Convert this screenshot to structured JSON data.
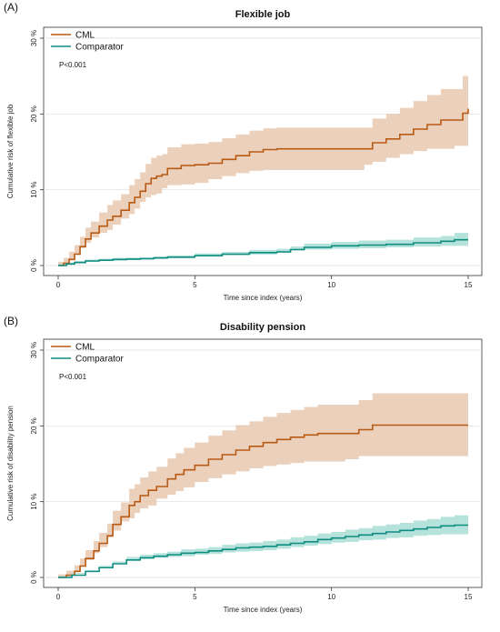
{
  "chart_data": [
    {
      "type": "line",
      "panel_label": "(A)",
      "title": "Flexible job",
      "xlabel": "Time since index (years)",
      "ylabel": "Cumulative risk of flexible job",
      "xlim": [
        0,
        15
      ],
      "ylim": [
        0,
        30
      ],
      "x_ticks": [
        0,
        5,
        10,
        15
      ],
      "y_ticks": [
        0,
        10,
        20,
        30
      ],
      "y_tick_labels": [
        "0 %",
        "10 %",
        "20 %",
        "30 %"
      ],
      "grid": "horizontal",
      "legend_position": "top-left",
      "annotation": "P<0.001",
      "series": [
        {
          "name": "CML",
          "color": "#b85a14",
          "band_color": "#e8c8b0",
          "x": [
            0,
            0.2,
            0.4,
            0.6,
            0.8,
            1.0,
            1.2,
            1.5,
            1.8,
            2.0,
            2.3,
            2.6,
            2.8,
            3.0,
            3.2,
            3.4,
            3.6,
            3.8,
            4.0,
            4.5,
            5.0,
            5.5,
            6.0,
            6.5,
            7.0,
            7.5,
            8.0,
            9.0,
            10.0,
            11.0,
            11.2,
            11.5,
            12.0,
            12.5,
            13.0,
            13.5,
            14.0,
            14.5,
            14.8,
            15.0
          ],
          "y": [
            0,
            0.3,
            0.8,
            1.5,
            2.5,
            3.5,
            4.3,
            5.2,
            6.0,
            6.5,
            7.3,
            8.3,
            9.0,
            9.8,
            10.8,
            11.5,
            11.8,
            12.0,
            12.8,
            13.2,
            13.3,
            13.5,
            14.0,
            14.5,
            15.0,
            15.3,
            15.4,
            15.4,
            15.4,
            15.4,
            15.4,
            16.2,
            16.7,
            17.3,
            18.0,
            18.6,
            19.2,
            19.2,
            20.1,
            20.7
          ],
          "ci_lower": [
            0,
            0.1,
            0.3,
            0.8,
            1.5,
            2.3,
            3.0,
            3.7,
            4.3,
            4.7,
            5.4,
            6.2,
            6.8,
            7.5,
            8.4,
            9.0,
            9.3,
            9.5,
            10.2,
            10.6,
            10.7,
            10.9,
            11.4,
            11.8,
            12.2,
            12.5,
            12.6,
            12.6,
            12.6,
            12.6,
            12.6,
            13.3,
            13.7,
            14.2,
            14.7,
            15.1,
            15.4,
            15.4,
            15.8,
            15.8
          ],
          "ci_upper": [
            0.5,
            1.0,
            1.8,
            2.7,
            3.8,
            5.0,
            5.8,
            7.0,
            8.0,
            8.6,
            9.4,
            10.6,
            11.4,
            12.3,
            13.4,
            14.2,
            14.5,
            14.7,
            15.6,
            16.0,
            16.1,
            16.3,
            16.8,
            17.3,
            17.8,
            18.1,
            18.2,
            18.2,
            18.2,
            18.2,
            18.2,
            19.4,
            20.0,
            20.8,
            21.7,
            22.5,
            23.3,
            23.3,
            25.0,
            25.8
          ]
        },
        {
          "name": "Comparator",
          "color": "#0e8c80",
          "band_color": "#a8ddd5",
          "x": [
            0,
            0.3,
            0.6,
            1.0,
            1.5,
            2.0,
            2.5,
            3.0,
            3.5,
            4.0,
            5.0,
            6.0,
            7.0,
            8.0,
            8.5,
            9.0,
            10.0,
            11.0,
            12.0,
            13.0,
            14.0,
            14.5,
            15.0
          ],
          "y": [
            0,
            0.2,
            0.4,
            0.6,
            0.7,
            0.8,
            0.85,
            0.9,
            1.0,
            1.1,
            1.3,
            1.5,
            1.7,
            1.8,
            2.1,
            2.4,
            2.6,
            2.7,
            2.8,
            3.0,
            3.2,
            3.4,
            3.4
          ],
          "ci_lower": [
            0,
            0.1,
            0.2,
            0.4,
            0.5,
            0.6,
            0.65,
            0.7,
            0.8,
            0.9,
            1.0,
            1.2,
            1.35,
            1.45,
            1.7,
            2.0,
            2.1,
            2.2,
            2.3,
            2.4,
            2.5,
            2.6,
            2.6
          ],
          "ci_upper": [
            0.2,
            0.4,
            0.6,
            0.8,
            0.9,
            1.0,
            1.05,
            1.1,
            1.2,
            1.35,
            1.6,
            1.8,
            2.05,
            2.2,
            2.5,
            2.9,
            3.1,
            3.3,
            3.4,
            3.7,
            3.9,
            4.3,
            4.3
          ]
        }
      ]
    },
    {
      "type": "line",
      "panel_label": "(B)",
      "title": "Disability pension",
      "xlabel": "Time since index (years)",
      "ylabel": "Cumulative risk of disability pension",
      "xlim": [
        0,
        15
      ],
      "ylim": [
        0,
        30
      ],
      "x_ticks": [
        0,
        5,
        10,
        15
      ],
      "y_ticks": [
        0,
        10,
        20,
        30
      ],
      "y_tick_labels": [
        "0 %",
        "10 %",
        "20 %",
        "30 %"
      ],
      "grid": "horizontal",
      "legend_position": "top-left",
      "annotation": "P<0.001",
      "series": [
        {
          "name": "CML",
          "color": "#b85a14",
          "band_color": "#e8c8b0",
          "x": [
            0,
            0.3,
            0.6,
            0.8,
            1.0,
            1.3,
            1.5,
            1.8,
            2.0,
            2.3,
            2.6,
            2.8,
            3.0,
            3.3,
            3.6,
            4.0,
            4.3,
            4.6,
            5.0,
            5.5,
            6.0,
            6.5,
            7.0,
            7.5,
            8.0,
            8.5,
            9.0,
            9.5,
            10.0,
            10.5,
            11.0,
            11.5,
            12.0,
            13.0,
            14.0,
            15.0
          ],
          "y": [
            0,
            0.3,
            0.8,
            1.5,
            2.5,
            3.5,
            4.5,
            5.5,
            7.0,
            8.0,
            9.5,
            10.0,
            10.8,
            11.5,
            12.0,
            13.0,
            13.6,
            14.2,
            14.8,
            15.6,
            16.2,
            16.8,
            17.3,
            17.8,
            18.2,
            18.5,
            18.8,
            19.0,
            19.0,
            19.0,
            19.5,
            20.1,
            20.1,
            20.1,
            20.1,
            20.1
          ],
          "ci_lower": [
            0,
            0.1,
            0.3,
            0.8,
            1.5,
            2.3,
            3.2,
            4.0,
            5.3,
            6.2,
            7.4,
            7.8,
            8.5,
            9.1,
            9.5,
            10.4,
            10.9,
            11.4,
            11.9,
            12.6,
            13.1,
            13.6,
            14.0,
            14.4,
            14.7,
            14.9,
            15.1,
            15.3,
            15.3,
            15.3,
            15.6,
            16.0,
            16.0,
            16.0,
            16.0,
            16.0
          ],
          "ci_upper": [
            0.4,
            0.9,
            1.6,
            2.5,
            3.6,
            4.8,
            5.9,
            7.1,
            8.8,
            9.9,
            11.7,
            12.3,
            13.2,
            14.0,
            14.6,
            15.7,
            16.4,
            17.1,
            17.8,
            18.7,
            19.4,
            20.1,
            20.6,
            21.2,
            21.7,
            22.1,
            22.5,
            22.8,
            22.8,
            22.8,
            23.4,
            24.3,
            24.3,
            24.3,
            24.3,
            24.3
          ]
        },
        {
          "name": "Comparator",
          "color": "#0e8c80",
          "band_color": "#a8ddd5",
          "x": [
            0,
            0.5,
            1.0,
            1.5,
            2.0,
            2.5,
            3.0,
            3.5,
            4.0,
            4.5,
            5.0,
            5.5,
            6.0,
            6.5,
            7.0,
            7.5,
            8.0,
            8.5,
            9.0,
            9.5,
            10.0,
            10.5,
            11.0,
            11.5,
            12.0,
            12.5,
            13.0,
            13.5,
            14.0,
            14.5,
            15.0
          ],
          "y": [
            0,
            0.3,
            0.8,
            1.3,
            1.8,
            2.3,
            2.6,
            2.8,
            3.0,
            3.2,
            3.3,
            3.5,
            3.7,
            3.9,
            4.0,
            4.1,
            4.3,
            4.5,
            4.7,
            5.0,
            5.2,
            5.4,
            5.6,
            5.8,
            6.0,
            6.2,
            6.4,
            6.6,
            6.8,
            6.9,
            6.9
          ],
          "ci_lower": [
            0,
            0.2,
            0.6,
            1.0,
            1.5,
            1.9,
            2.2,
            2.4,
            2.6,
            2.7,
            2.8,
            3.0,
            3.1,
            3.3,
            3.4,
            3.5,
            3.6,
            3.8,
            4.0,
            4.2,
            4.4,
            4.6,
            4.7,
            4.9,
            5.0,
            5.2,
            5.3,
            5.5,
            5.6,
            5.7,
            5.7
          ],
          "ci_upper": [
            0.1,
            0.5,
            1.0,
            1.6,
            2.1,
            2.7,
            3.0,
            3.2,
            3.4,
            3.7,
            3.8,
            4.0,
            4.3,
            4.5,
            4.6,
            4.8,
            5.0,
            5.3,
            5.5,
            5.8,
            6.0,
            6.3,
            6.5,
            6.8,
            7.0,
            7.2,
            7.5,
            7.7,
            8.0,
            8.2,
            8.2
          ]
        }
      ]
    }
  ]
}
